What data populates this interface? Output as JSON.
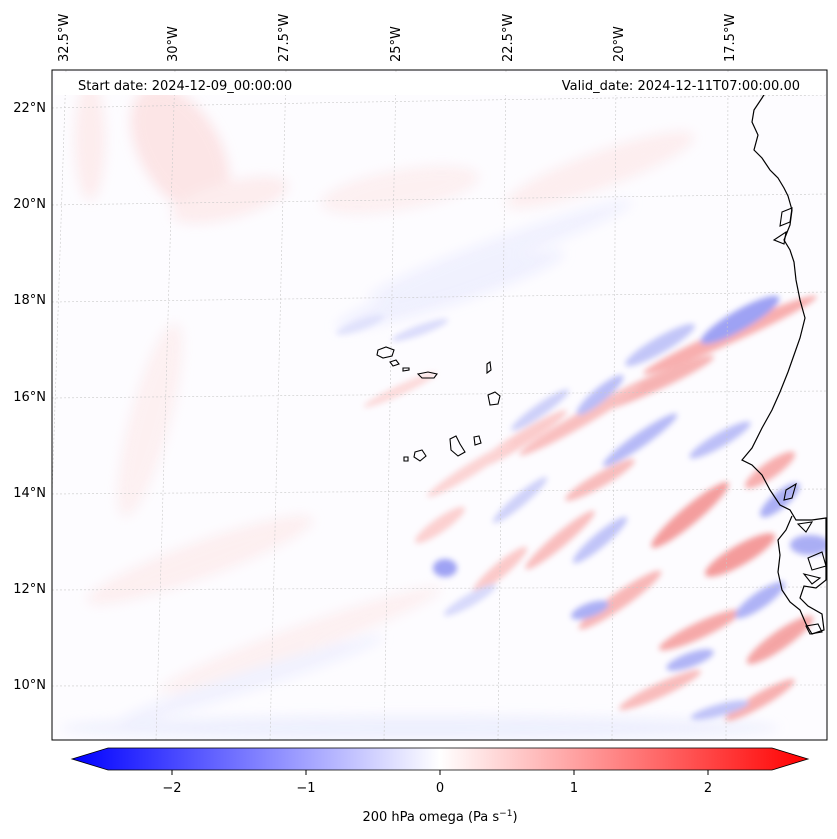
{
  "header": {
    "start_date": "Start date: 2024-12-09_00:00:00",
    "valid_date": "Valid_date: 2024-12-11T07:00:00.00"
  },
  "map": {
    "lon_labels": [
      "32.5°W",
      "30°W",
      "27.5°W",
      "25°W",
      "22.5°W",
      "20°W",
      "17.5°W"
    ],
    "lat_labels": [
      "22°N",
      "20°N",
      "18°N",
      "16°N",
      "14°N",
      "12°N",
      "10°N"
    ],
    "field": "200 hPa omega",
    "colormap": "bwr"
  },
  "colorbar": {
    "label_main": "200 hPa omega (Pa s",
    "label_exp": "−1",
    "label_close": ")",
    "ticks": [
      "−2",
      "−1",
      "0",
      "1",
      "2"
    ],
    "range": [
      -2.6,
      2.6
    ],
    "color_low": "#0000ff",
    "color_mid": "#ffffff",
    "color_high": "#ff0000"
  }
}
